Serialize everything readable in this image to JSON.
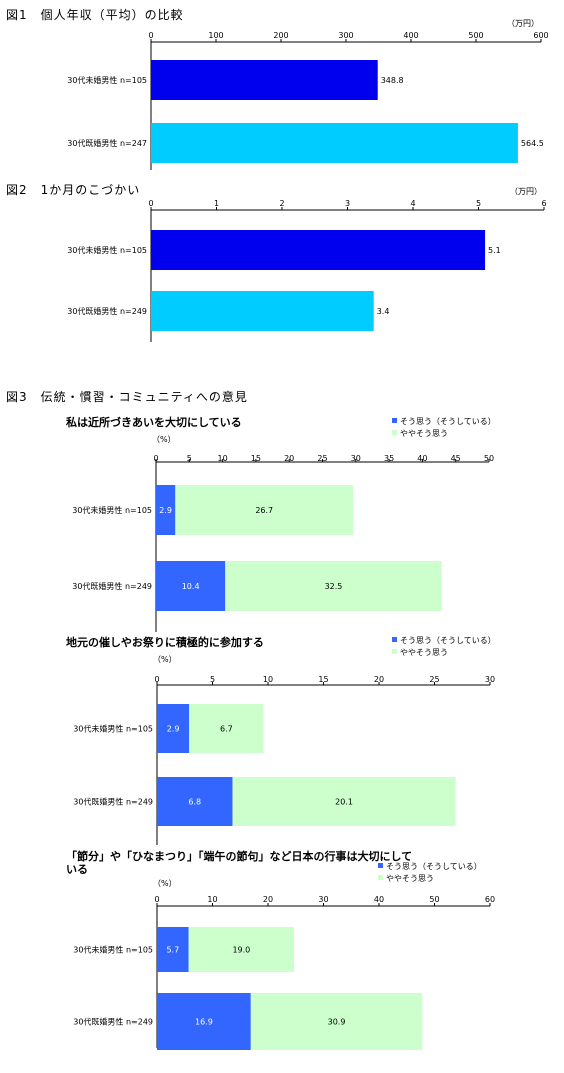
{
  "colors": {
    "dark_blue": "#0000EE",
    "cyan": "#00CCFF",
    "strong": "#3366FF",
    "light_green": "#CCFFCC"
  },
  "figures": {
    "fig1": {
      "title": "図1　個人年収（平均）の比較"
    },
    "fig2": {
      "title": "図2　1か月のこづかい"
    },
    "fig3": {
      "title": "図3　伝統・慣習・コミュニティへの意見"
    }
  },
  "chart_data": [
    {
      "type": "bar",
      "orientation": "horizontal",
      "title": "図1　個人年収（平均）の比較",
      "unit": "（万円）",
      "xlim": [
        0,
        600
      ],
      "ticks": [
        0,
        100,
        200,
        300,
        400,
        500,
        600
      ],
      "categories": [
        "30代未婚男性 n=105",
        "30代既婚男性 n=247"
      ],
      "values": [
        348.8,
        564.5
      ],
      "value_labels": [
        "348.8",
        "564.5"
      ],
      "bar_colors": [
        "#0000EE",
        "#00CCFF"
      ]
    },
    {
      "type": "bar",
      "orientation": "horizontal",
      "title": "図2　1か月のこづかい",
      "unit": "（万円）",
      "xlim": [
        0,
        6
      ],
      "ticks": [
        0,
        1,
        2,
        3,
        4,
        5,
        6
      ],
      "categories": [
        "30代未婚男性 n=105",
        "30代既婚男性 n=249"
      ],
      "values": [
        5.1,
        3.4
      ],
      "value_labels": [
        "5.1",
        "3.4"
      ],
      "bar_colors": [
        "#0000EE",
        "#00CCFF"
      ]
    },
    {
      "type": "bar",
      "orientation": "horizontal",
      "stacked": true,
      "title": "私は近所づきあいを大切にしている",
      "unit": "（%）",
      "xlim": [
        0,
        50
      ],
      "ticks": [
        0,
        5,
        10,
        15,
        20,
        25,
        30,
        35,
        40,
        45,
        50
      ],
      "categories": [
        "30代未婚男性 n=105",
        "30代既婚男性 n=249"
      ],
      "legend": [
        "そう思う（そうしている）",
        "ややそう思う"
      ],
      "series": [
        {
          "name": "そう思う（そうしている）",
          "values": [
            2.9,
            10.4
          ],
          "labels": [
            "2.9",
            "10.4"
          ]
        },
        {
          "name": "ややそう思う",
          "values": [
            26.7,
            32.5
          ],
          "labels": [
            "26.7",
            "32.5"
          ]
        }
      ]
    },
    {
      "type": "bar",
      "orientation": "horizontal",
      "stacked": true,
      "title": "地元の催しやお祭りに積極的に参加する",
      "unit": "（%）",
      "xlim": [
        0,
        30
      ],
      "ticks": [
        0,
        5,
        10,
        15,
        20,
        25,
        30
      ],
      "categories": [
        "30代未婚男性 n=105",
        "30代既婚男性 n=249"
      ],
      "legend": [
        "そう思う（そうしている）",
        "ややそう思う"
      ],
      "series": [
        {
          "name": "そう思う（そうしている）",
          "values": [
            2.9,
            6.8
          ],
          "labels": [
            "2.9",
            "6.8"
          ]
        },
        {
          "name": "ややそう思う",
          "values": [
            6.7,
            20.1
          ],
          "labels": [
            "6.7",
            "20.1"
          ]
        }
      ]
    },
    {
      "type": "bar",
      "orientation": "horizontal",
      "stacked": true,
      "title": "「節分」や「ひなまつり」「端午の節句」など日本の行事は大切にしている",
      "title_lines": [
        "「節分」や「ひなまつり」「端午の節句」など日本の行事は大切にして",
        "いる"
      ],
      "unit": "（%）",
      "xlim": [
        0,
        60
      ],
      "ticks": [
        0,
        10,
        20,
        30,
        40,
        50,
        60
      ],
      "categories": [
        "30代未婚男性 n=105",
        "30代既婚男性 n=249"
      ],
      "legend": [
        "そう思う（そうしている）",
        "ややそう思う"
      ],
      "series": [
        {
          "name": "そう思う（そうしている）",
          "values": [
            5.7,
            16.9
          ],
          "labels": [
            "5.7",
            "16.9"
          ]
        },
        {
          "name": "ややそう思う",
          "values": [
            19.0,
            30.9
          ],
          "labels": [
            "19.0",
            "30.9"
          ]
        }
      ]
    }
  ]
}
